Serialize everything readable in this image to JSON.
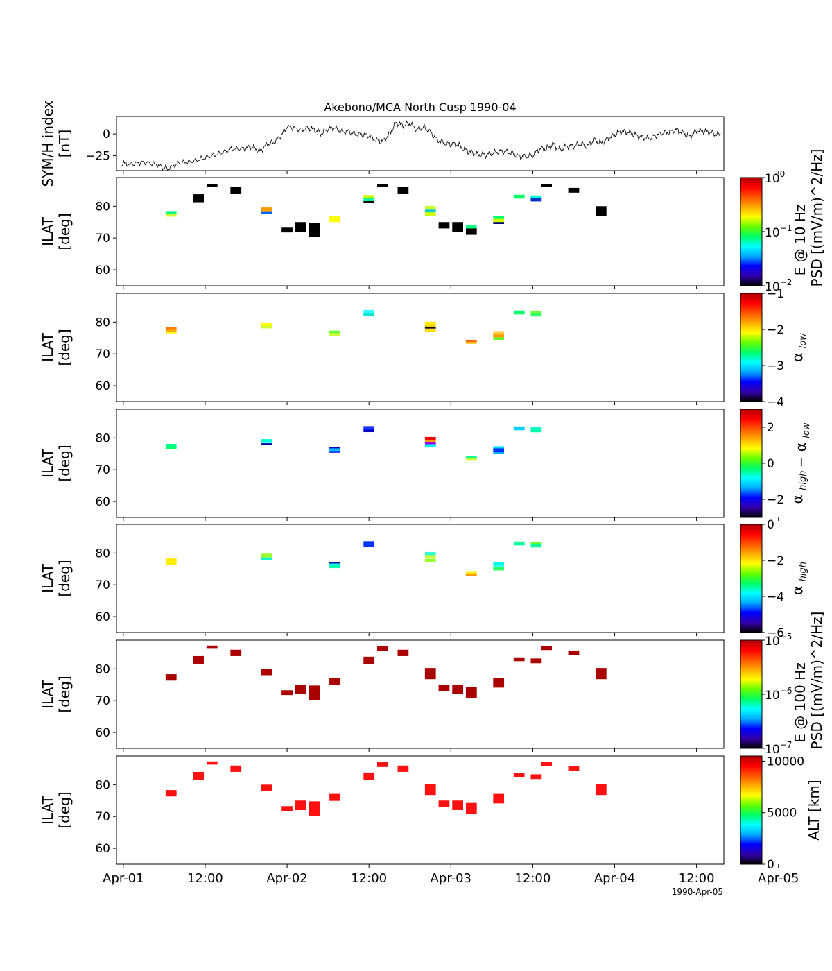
{
  "title": "Akebono/MCA North Cusp 1990-04",
  "footer_date": "1990-Apr-05",
  "x_ticks": [
    "Apr-01",
    "12:00",
    "Apr-02",
    "12:00",
    "Apr-03",
    "12:00",
    "Apr-04",
    "12:00",
    "Apr-05"
  ],
  "chart_data": [
    {
      "id": "symh",
      "type": "line",
      "ylabel_lines": [
        "SYM/H index",
        "[nT]"
      ],
      "ylim": [
        -42,
        20
      ],
      "yticks": [
        0,
        -25
      ],
      "ytick_labels": [
        "0",
        "−25"
      ],
      "xlim_hours": [
        -1,
        88
      ],
      "anchors": [
        [
          -0.2,
          -33
        ],
        [
          1,
          -35
        ],
        [
          3,
          -33
        ],
        [
          5,
          -36
        ],
        [
          6.5,
          -40
        ],
        [
          8,
          -34
        ],
        [
          10,
          -32
        ],
        [
          12,
          -27
        ],
        [
          14,
          -22
        ],
        [
          16,
          -16
        ],
        [
          18,
          -16
        ],
        [
          19,
          -15
        ],
        [
          20,
          -20
        ],
        [
          21,
          -12
        ],
        [
          22,
          -10
        ],
        [
          23,
          -3
        ],
        [
          24,
          8
        ],
        [
          26,
          4
        ],
        [
          27,
          7
        ],
        [
          28,
          5
        ],
        [
          29,
          0
        ],
        [
          30,
          6
        ],
        [
          31,
          7
        ],
        [
          32,
          2
        ],
        [
          33,
          3
        ],
        [
          34,
          0
        ],
        [
          35,
          -1
        ],
        [
          36,
          -2
        ],
        [
          37,
          -7
        ],
        [
          38,
          -9
        ],
        [
          39,
          0
        ],
        [
          40,
          13
        ],
        [
          41,
          10
        ],
        [
          42,
          12
        ],
        [
          43,
          5
        ],
        [
          44,
          8
        ],
        [
          45,
          2
        ],
        [
          46,
          -7
        ],
        [
          47,
          -10
        ],
        [
          48,
          -12
        ],
        [
          49,
          -12
        ],
        [
          50,
          -18
        ],
        [
          51,
          -21
        ],
        [
          52,
          -24
        ],
        [
          53,
          -24
        ],
        [
          54,
          -22
        ],
        [
          55,
          -20
        ],
        [
          56,
          -20
        ],
        [
          57,
          -22
        ],
        [
          58,
          -26
        ],
        [
          59,
          -26
        ],
        [
          60,
          -24
        ],
        [
          61,
          -17
        ],
        [
          62,
          -17
        ],
        [
          63,
          -12
        ],
        [
          64,
          -18
        ],
        [
          65,
          -14
        ],
        [
          66,
          -14
        ],
        [
          67,
          -11
        ],
        [
          68,
          -14
        ],
        [
          69,
          -7
        ],
        [
          70,
          -11
        ],
        [
          71,
          -5
        ],
        [
          72,
          -1
        ],
        [
          73,
          3
        ],
        [
          74,
          2
        ],
        [
          75,
          -1
        ],
        [
          76,
          -4
        ],
        [
          77,
          -5
        ],
        [
          78,
          -2
        ],
        [
          79,
          1
        ],
        [
          80,
          2
        ],
        [
          81,
          5
        ],
        [
          82,
          1
        ],
        [
          83,
          -3
        ],
        [
          84,
          4
        ],
        [
          85,
          3
        ],
        [
          86,
          2
        ],
        [
          87,
          -1
        ],
        [
          87.5,
          0
        ]
      ]
    },
    {
      "id": "e10hz",
      "type": "heatmap",
      "ylabel_lines": [
        "ILAT",
        "[deg]"
      ],
      "ylim": [
        55,
        89
      ],
      "yticks": [
        60,
        70,
        80
      ],
      "colorbar": {
        "scale": "log",
        "label_lines": [
          "E @ 10 Hz",
          "PSD [(mV/m)^2/Hz]"
        ],
        "ticks": [
          "10^0",
          "10^−1",
          "10^−2"
        ],
        "range": [
          0.01,
          1
        ]
      },
      "cells": [
        [
          7,
          77.5,
          1.0,
          "#ffff00"
        ],
        [
          7,
          78.0,
          0.9,
          "#00ff80"
        ],
        [
          7,
          77.1,
          0.8,
          "#ccff33"
        ],
        [
          11,
          82.5,
          2.5,
          "#000000"
        ],
        [
          13,
          86.5,
          1.0,
          "#000000"
        ],
        [
          16.5,
          85.0,
          2.0,
          "#000000"
        ],
        [
          21,
          79.0,
          1.2,
          "#ff9900"
        ],
        [
          21,
          78.0,
          0.8,
          "#0066ff"
        ],
        [
          24,
          72.5,
          1.5,
          "#000000"
        ],
        [
          26,
          73.5,
          3.0,
          "#000000"
        ],
        [
          28,
          72.5,
          4.5,
          "#000000"
        ],
        [
          31,
          76.0,
          2.0,
          "#ffff00"
        ],
        [
          36,
          83.0,
          1.0,
          "#ccff00"
        ],
        [
          36,
          82.0,
          1.0,
          "#00ff99"
        ],
        [
          36,
          81.3,
          0.6,
          "#000000"
        ],
        [
          38,
          86.5,
          1.0,
          "#000000"
        ],
        [
          41,
          85.0,
          2.0,
          "#000000"
        ],
        [
          45,
          79.5,
          1.2,
          "#ccff33"
        ],
        [
          45,
          78.5,
          0.8,
          "#00cccc"
        ],
        [
          45,
          77.5,
          1.2,
          "#ccff00"
        ],
        [
          47,
          74.0,
          2.0,
          "#000000"
        ],
        [
          49,
          73.5,
          3.0,
          "#000000"
        ],
        [
          51,
          73.5,
          1.0,
          "#00ff80"
        ],
        [
          51,
          72.0,
          2.0,
          "#000000"
        ],
        [
          55,
          76.5,
          1.0,
          "#00ff66"
        ],
        [
          55,
          75.5,
          1.0,
          "#ccff00"
        ],
        [
          55,
          74.7,
          0.6,
          "#000066"
        ],
        [
          58,
          83.0,
          1.2,
          "#00ff66"
        ],
        [
          60.5,
          83.0,
          0.8,
          "#00ffcc"
        ],
        [
          60.5,
          82.0,
          1.0,
          "#0033cc"
        ],
        [
          62,
          86.5,
          1.0,
          "#000000"
        ],
        [
          66,
          85.0,
          1.5,
          "#000000"
        ],
        [
          70,
          78.5,
          3.0,
          "#000000"
        ]
      ]
    },
    {
      "id": "alpha_low",
      "type": "heatmap",
      "ylabel_lines": [
        "ILAT",
        "[deg]"
      ],
      "ylim": [
        55,
        89
      ],
      "yticks": [
        60,
        70,
        80
      ],
      "colorbar": {
        "scale": "linear",
        "label": "α low",
        "ticks": [
          "−1",
          "−2",
          "−3",
          "−4"
        ],
        "range": [
          -4,
          -1
        ]
      },
      "cells": [
        [
          7,
          78.0,
          0.9,
          "#ff7700"
        ],
        [
          7,
          77.2,
          0.8,
          "#ffaa00"
        ],
        [
          7,
          76.6,
          0.5,
          "#ffff33"
        ],
        [
          21,
          79.2,
          1.0,
          "#ffff00"
        ],
        [
          21,
          78.4,
          0.8,
          "#ccff33"
        ],
        [
          31,
          76.9,
          0.8,
          "#66ff33"
        ],
        [
          31,
          76.0,
          1.0,
          "#ccff33"
        ],
        [
          36,
          83.3,
          1.0,
          "#33ffff"
        ],
        [
          36,
          82.4,
          1.0,
          "#00e6cc"
        ],
        [
          45,
          79.6,
          1.0,
          "#ffee00"
        ],
        [
          45,
          78.8,
          0.7,
          "#ffcc00"
        ],
        [
          45,
          78.2,
          0.5,
          "#000000"
        ],
        [
          45,
          77.4,
          1.0,
          "#ffdd00"
        ],
        [
          51,
          74.0,
          0.8,
          "#ff6600"
        ],
        [
          51,
          73.4,
          0.6,
          "#ffcc33"
        ],
        [
          55,
          76.6,
          1.0,
          "#ffcc33"
        ],
        [
          55,
          75.6,
          1.0,
          "#ff9900"
        ],
        [
          55,
          74.8,
          0.8,
          "#66ff33"
        ],
        [
          58,
          83.0,
          1.2,
          "#00ff66"
        ],
        [
          60.5,
          83.0,
          0.8,
          "#66ff33"
        ],
        [
          60.5,
          82.2,
          0.9,
          "#33ff66"
        ]
      ]
    },
    {
      "id": "alpha_diff",
      "type": "heatmap",
      "ylabel_lines": [
        "ILAT",
        "[deg]"
      ],
      "ylim": [
        55,
        89
      ],
      "yticks": [
        60,
        70,
        80
      ],
      "colorbar": {
        "scale": "linear",
        "label": "α high − α low",
        "ticks": [
          "2",
          "0",
          "−2"
        ],
        "range": [
          -3,
          3
        ]
      },
      "cells": [
        [
          7,
          77.6,
          1.0,
          "#00ff88"
        ],
        [
          7,
          76.8,
          0.8,
          "#00ff66"
        ],
        [
          21,
          79.0,
          1.2,
          "#00ffdd"
        ],
        [
          21,
          78.0,
          0.6,
          "#0000aa"
        ],
        [
          31,
          76.9,
          0.5,
          "#0000cc"
        ],
        [
          31,
          76.3,
          0.8,
          "#00bbff"
        ],
        [
          31,
          75.6,
          0.6,
          "#0033ff"
        ],
        [
          36,
          83.0,
          1.4,
          "#1a33ff"
        ],
        [
          36,
          82.2,
          0.8,
          "#0000cc"
        ],
        [
          45,
          79.8,
          1.0,
          "#ff0000"
        ],
        [
          45,
          79.0,
          0.7,
          "#ff9900"
        ],
        [
          45,
          78.3,
          0.7,
          "#9900ff"
        ],
        [
          45,
          77.5,
          1.0,
          "#00ffee"
        ],
        [
          51,
          74.0,
          0.8,
          "#00ff88"
        ],
        [
          51,
          73.3,
          0.6,
          "#ccff33"
        ],
        [
          55,
          77.0,
          0.7,
          "#00ddff"
        ],
        [
          55,
          76.2,
          1.0,
          "#0033ff"
        ],
        [
          55,
          75.3,
          0.8,
          "#00aaff"
        ],
        [
          58,
          83.0,
          1.2,
          "#00ccff"
        ],
        [
          60.5,
          83.0,
          0.8,
          "#00ffcc"
        ],
        [
          60.5,
          82.2,
          0.9,
          "#00ffaa"
        ]
      ]
    },
    {
      "id": "alpha_high",
      "type": "heatmap",
      "ylabel_lines": [
        "ILAT",
        "[deg]"
      ],
      "ylim": [
        55,
        89
      ],
      "yticks": [
        60,
        70,
        80
      ],
      "colorbar": {
        "scale": "linear",
        "label": "α high",
        "ticks": [
          "0",
          "−2",
          "−4",
          "−6"
        ],
        "range": [
          -6,
          0
        ]
      },
      "cells": [
        [
          7,
          77.3,
          2.0,
          "#ffee00"
        ],
        [
          21,
          79.2,
          1.2,
          "#99ff33"
        ],
        [
          21,
          78.2,
          0.8,
          "#00ffcc"
        ],
        [
          31,
          76.9,
          0.5,
          "#0000aa"
        ],
        [
          31,
          76.3,
          0.8,
          "#00ffcc"
        ],
        [
          31,
          75.6,
          0.7,
          "#00ffaa"
        ],
        [
          36,
          82.8,
          1.8,
          "#0033ff"
        ],
        [
          45,
          79.8,
          1.0,
          "#33ffcc"
        ],
        [
          45,
          78.8,
          1.0,
          "#ccff33"
        ],
        [
          45,
          77.6,
          1.2,
          "#99ff33"
        ],
        [
          51,
          73.8,
          1.0,
          "#ffee00"
        ],
        [
          51,
          73.1,
          0.5,
          "#ff9900"
        ],
        [
          55,
          76.7,
          0.8,
          "#00ffdd"
        ],
        [
          55,
          75.9,
          0.8,
          "#33ffff"
        ],
        [
          55,
          75.0,
          1.0,
          "#33ff66"
        ],
        [
          58,
          83.0,
          1.2,
          "#00ff99"
        ],
        [
          60.5,
          83.0,
          0.8,
          "#66ff33"
        ],
        [
          60.5,
          82.2,
          0.9,
          "#00ff99"
        ]
      ]
    },
    {
      "id": "e100hz",
      "type": "heatmap",
      "ylabel_lines": [
        "ILAT",
        "[deg]"
      ],
      "ylim": [
        55,
        89
      ],
      "yticks": [
        60,
        70,
        80
      ],
      "colorbar": {
        "scale": "log",
        "label_lines": [
          "E @ 100 Hz",
          "PSD [(mV/m)^2/Hz]"
        ],
        "ticks": [
          "10^−5",
          "10^−6",
          "10^−7"
        ],
        "range": [
          1e-07,
          1e-05
        ]
      },
      "cells": [
        [
          7,
          77.3,
          2.0,
          "#aa0000"
        ],
        [
          11,
          82.8,
          2.4,
          "#aa0000"
        ],
        [
          13,
          86.8,
          1.0,
          "#aa0000"
        ],
        [
          16.5,
          85.0,
          2.0,
          "#aa0000"
        ],
        [
          21,
          79.0,
          2.0,
          "#aa0000"
        ],
        [
          24,
          72.5,
          1.5,
          "#aa0000"
        ],
        [
          26,
          73.5,
          3.0,
          "#aa0000"
        ],
        [
          28,
          72.5,
          4.5,
          "#aa0000"
        ],
        [
          31,
          76.0,
          2.2,
          "#aa0000"
        ],
        [
          36,
          82.6,
          2.4,
          "#aa0000"
        ],
        [
          38,
          86.3,
          1.5,
          "#aa0000"
        ],
        [
          41,
          85.0,
          2.0,
          "#aa0000"
        ],
        [
          45,
          78.5,
          3.5,
          "#aa0000"
        ],
        [
          47,
          74.0,
          2.0,
          "#aa0000"
        ],
        [
          49,
          73.5,
          3.0,
          "#aa0000"
        ],
        [
          51,
          72.5,
          3.5,
          "#aa0000"
        ],
        [
          55,
          75.6,
          3.0,
          "#aa0000"
        ],
        [
          58,
          83.0,
          1.2,
          "#aa0000"
        ],
        [
          60.5,
          82.5,
          1.5,
          "#aa0000"
        ],
        [
          62,
          86.5,
          1.2,
          "#aa0000"
        ],
        [
          66,
          85.0,
          1.5,
          "#aa0000"
        ],
        [
          70,
          78.5,
          3.5,
          "#aa0000"
        ]
      ]
    },
    {
      "id": "alt",
      "type": "heatmap",
      "ylabel_lines": [
        "ILAT",
        "[deg]"
      ],
      "ylim": [
        55,
        89
      ],
      "yticks": [
        60,
        70,
        80
      ],
      "colorbar": {
        "scale": "linear",
        "label": "ALT [km]",
        "ticks": [
          "10000",
          "5000",
          "0"
        ],
        "range": [
          0,
          10500
        ]
      },
      "cells": [
        [
          7,
          77.3,
          2.0,
          "#ff1111"
        ],
        [
          11,
          82.8,
          2.4,
          "#ff1111"
        ],
        [
          13,
          86.8,
          1.0,
          "#ff1111"
        ],
        [
          16.5,
          85.0,
          2.0,
          "#ff1111"
        ],
        [
          21,
          79.0,
          2.0,
          "#ff1111"
        ],
        [
          24,
          72.5,
          1.5,
          "#ff1111"
        ],
        [
          26,
          73.5,
          3.0,
          "#ff1111"
        ],
        [
          28,
          72.5,
          4.5,
          "#ff1111"
        ],
        [
          31,
          76.0,
          2.2,
          "#ff1111"
        ],
        [
          36,
          82.6,
          2.4,
          "#ff1111"
        ],
        [
          38,
          86.3,
          1.5,
          "#ff1111"
        ],
        [
          41,
          85.0,
          2.0,
          "#ff1111"
        ],
        [
          45,
          78.5,
          3.5,
          "#ff1111"
        ],
        [
          47,
          74.0,
          2.0,
          "#ff1111"
        ],
        [
          49,
          73.5,
          3.0,
          "#ff1111"
        ],
        [
          51,
          72.5,
          3.5,
          "#ff1111"
        ],
        [
          55,
          75.6,
          3.0,
          "#ff1111"
        ],
        [
          58,
          83.0,
          1.2,
          "#ff1111"
        ],
        [
          60.5,
          82.5,
          1.5,
          "#ff1111"
        ],
        [
          62,
          86.5,
          1.2,
          "#ff1111"
        ],
        [
          66,
          85.0,
          1.5,
          "#ff1111"
        ],
        [
          70,
          78.5,
          3.5,
          "#ff1111"
        ]
      ]
    }
  ],
  "colormap_stops": [
    "#000000",
    "#3300aa",
    "#0000ff",
    "#00aaff",
    "#00ffff",
    "#00ff66",
    "#66ff00",
    "#ffff00",
    "#ffaa00",
    "#ff5500",
    "#ff0000",
    "#b30000"
  ]
}
